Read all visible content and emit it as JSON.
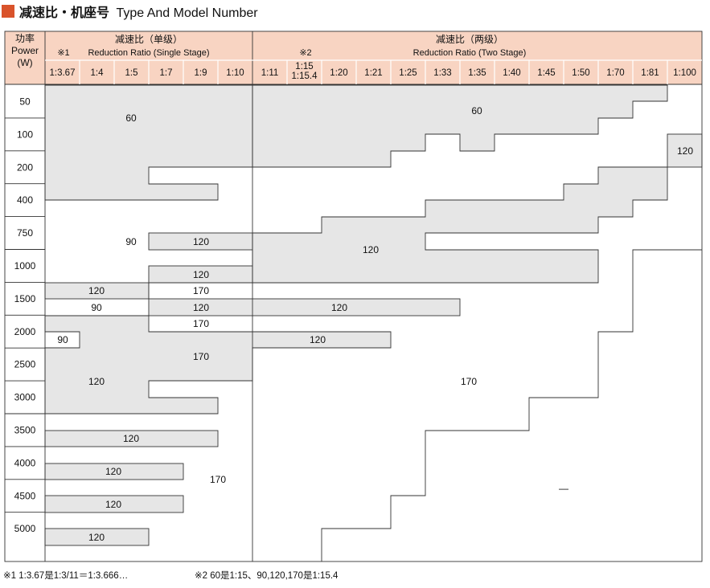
{
  "title": {
    "zh": "减速比・机座号",
    "en": "Type And Model Number"
  },
  "header": {
    "power_zh": "功率",
    "power_en": "Power",
    "power_unit": "(W)",
    "single_note": "※1",
    "single_zh": "减速比（单级）",
    "single_en": "Reduction Ratio (Single Stage)",
    "two_note": "※2",
    "two_zh": "减速比（两级）",
    "two_en": "Reduction Ratio (Two Stage)"
  },
  "ratios_single": [
    "1:3.67",
    "1:4",
    "1:5",
    "1:7",
    "1:9",
    "1:10"
  ],
  "ratios_two": [
    "1:11",
    "1:15\n1:15.4",
    "1:20",
    "1:21",
    "1:25",
    "1:33",
    "1:35",
    "1:40",
    "1:45",
    "1:50",
    "1:70",
    "1:81",
    "1:100"
  ],
  "powers": [
    "50",
    "100",
    "200",
    "400",
    "750",
    "1000",
    "1500",
    "2000",
    "2500",
    "3000",
    "3500",
    "4000",
    "4500",
    "5000"
  ],
  "frame_labels": [
    {
      "text": "60",
      "pos": "single-top"
    },
    {
      "text": "60",
      "pos": "two-top"
    },
    {
      "text": "120",
      "pos": "two-right-top"
    },
    {
      "text": "90",
      "pos": "single-750"
    },
    {
      "text": "120",
      "pos": "single-750-right"
    },
    {
      "text": "120",
      "pos": "two-750"
    },
    {
      "text": "120",
      "pos": "single-1000-right"
    },
    {
      "text": "120",
      "pos": "single-1000-left"
    },
    {
      "text": "170",
      "pos": "single-1000-right-b"
    },
    {
      "text": "90",
      "pos": "single-1500-left"
    },
    {
      "text": "120",
      "pos": "single-1500-right"
    },
    {
      "text": "120",
      "pos": "two-1500"
    },
    {
      "text": "170",
      "pos": "single-1500-right-b"
    },
    {
      "text": "90",
      "pos": "single-2000-left"
    },
    {
      "text": "120",
      "pos": "two-2000"
    },
    {
      "text": "170",
      "pos": "single-2000-right"
    },
    {
      "text": "120",
      "pos": "single-2500"
    },
    {
      "text": "170",
      "pos": "two-2500"
    },
    {
      "text": "120",
      "pos": "single-3500"
    },
    {
      "text": "120",
      "pos": "single-4000"
    },
    {
      "text": "170",
      "pos": "single-4000-right"
    },
    {
      "text": "120",
      "pos": "single-4500"
    },
    {
      "text": "120",
      "pos": "single-5000"
    },
    {
      "text": "—",
      "pos": "two-4000"
    }
  ],
  "footnotes": [
    "※1 1:3.67是1:3/11＝1:3.666…",
    "※2 60是1:15、90,120,170是1:15.4"
  ],
  "colors": {
    "accent": "#d9532b",
    "header_bg": "#f8d4c2",
    "shade": "#e6e6e6",
    "line": "#333333"
  }
}
